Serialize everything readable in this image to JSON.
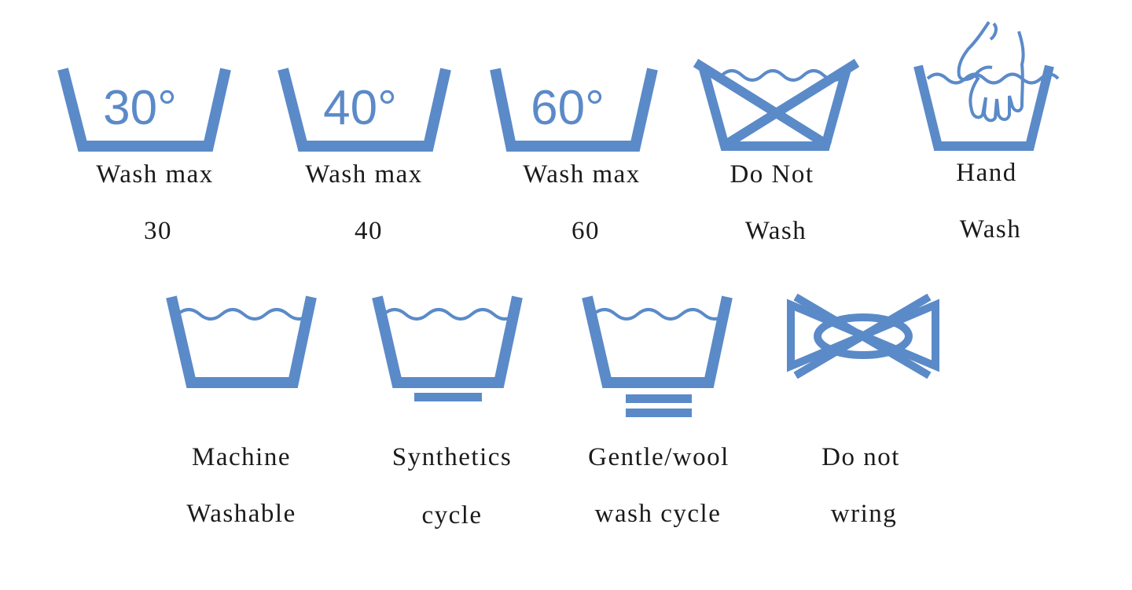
{
  "symbols": [
    {
      "id": "wash-30",
      "temperature": "30°",
      "label_line1": "Wash max",
      "label_line2": "30"
    },
    {
      "id": "wash-40",
      "temperature": "40°",
      "label_line1": "Wash max",
      "label_line2": "40"
    },
    {
      "id": "wash-60",
      "temperature": "60°",
      "label_line1": "Wash max",
      "label_line2": "60"
    },
    {
      "id": "do-not-wash",
      "label_line1": "Do Not",
      "label_line2": "Wash"
    },
    {
      "id": "hand-wash",
      "label_line1": "Hand",
      "label_line2": "Wash"
    },
    {
      "id": "machine-washable",
      "label_line1": "Machine",
      "label_line2": "Washable"
    },
    {
      "id": "synthetics-cycle",
      "label_line1": "Synthetics",
      "label_line2": "cycle"
    },
    {
      "id": "gentle-wool",
      "label_line1": "Gentle/wool",
      "label_line2": "wash cycle"
    },
    {
      "id": "do-not-wring",
      "label_line1": "Do not",
      "label_line2": "wring"
    }
  ],
  "colors": {
    "symbol": "#5b8ac8",
    "text": "#1a1a1a",
    "background": "#ffffff"
  }
}
